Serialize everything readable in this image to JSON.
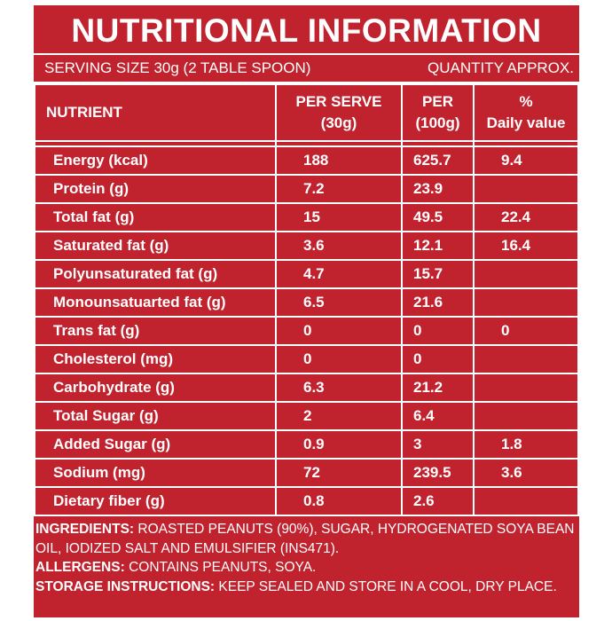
{
  "header": {
    "title": "NUTRITIONAL INFORMATION",
    "serving_size": "SERVING SIZE 30g (2 TABLE SPOON)",
    "quantity": "QUANTITY APPROX."
  },
  "table": {
    "columns": [
      [
        "NUTRIENT"
      ],
      [
        "PER SERVE",
        "(30g)"
      ],
      [
        "PER",
        "(100g)"
      ],
      [
        "%",
        "Daily value"
      ]
    ],
    "rows": [
      {
        "nutrient": "Energy  (kcal)",
        "per_serve": 188,
        "per_100g": 625.7,
        "daily_value": 9.4
      },
      {
        "nutrient": "Protein (g)",
        "per_serve": 7.2,
        "per_100g": 23.9
      },
      {
        "nutrient": "Total fat  (g)",
        "per_serve": 15,
        "per_100g": 49.5,
        "daily_value": 22.4
      },
      {
        "nutrient": "Saturated fat  (g)",
        "per_serve": 3.6,
        "per_100g": 12.1,
        "daily_value": 16.4
      },
      {
        "nutrient": "Polyunsaturated fat (g)",
        "per_serve": 4.7,
        "per_100g": 15.7
      },
      {
        "nutrient": "Monounsatuarted fat (g)",
        "per_serve": 6.5,
        "per_100g": 21.6
      },
      {
        "nutrient": "Trans fat (g)",
        "per_serve": 0,
        "per_100g": 0,
        "daily_value": 0
      },
      {
        "nutrient": "Cholesterol (mg)",
        "per_serve": 0,
        "per_100g": 0
      },
      {
        "nutrient": "Carbohydrate (g)",
        "per_serve": 6.3,
        "per_100g": 21.2
      },
      {
        "nutrient": "Total Sugar (g)",
        "per_serve": 2,
        "per_100g": 6.4
      },
      {
        "nutrient": "Added Sugar (g)",
        "per_serve": 0.9,
        "per_100g": 3,
        "daily_value": 1.8
      },
      {
        "nutrient": "Sodium (mg)",
        "per_serve": 72,
        "per_100g": 239.5,
        "daily_value": 3.6
      },
      {
        "nutrient": "Dietary fiber (g)",
        "per_serve": 0.8,
        "per_100g": 2.6
      }
    ]
  },
  "footer": {
    "ingredients": {
      "label": "INGREDIENTS:",
      "text": "ROASTED PEANUTS (90%), SUGAR, HYDROGENATED SOYA BEAN OIL, IODIZED SALT AND EMULSIFIER (INS471)."
    },
    "allergens": {
      "label": "ALLERGENS:",
      "text": "CONTAINS PEANUTS, SOYA."
    },
    "storage": {
      "label": "STORAGE INSTRUCTIONS:",
      "text": "KEEP SEALED AND STORE IN A COOL, DRY PLACE."
    }
  }
}
